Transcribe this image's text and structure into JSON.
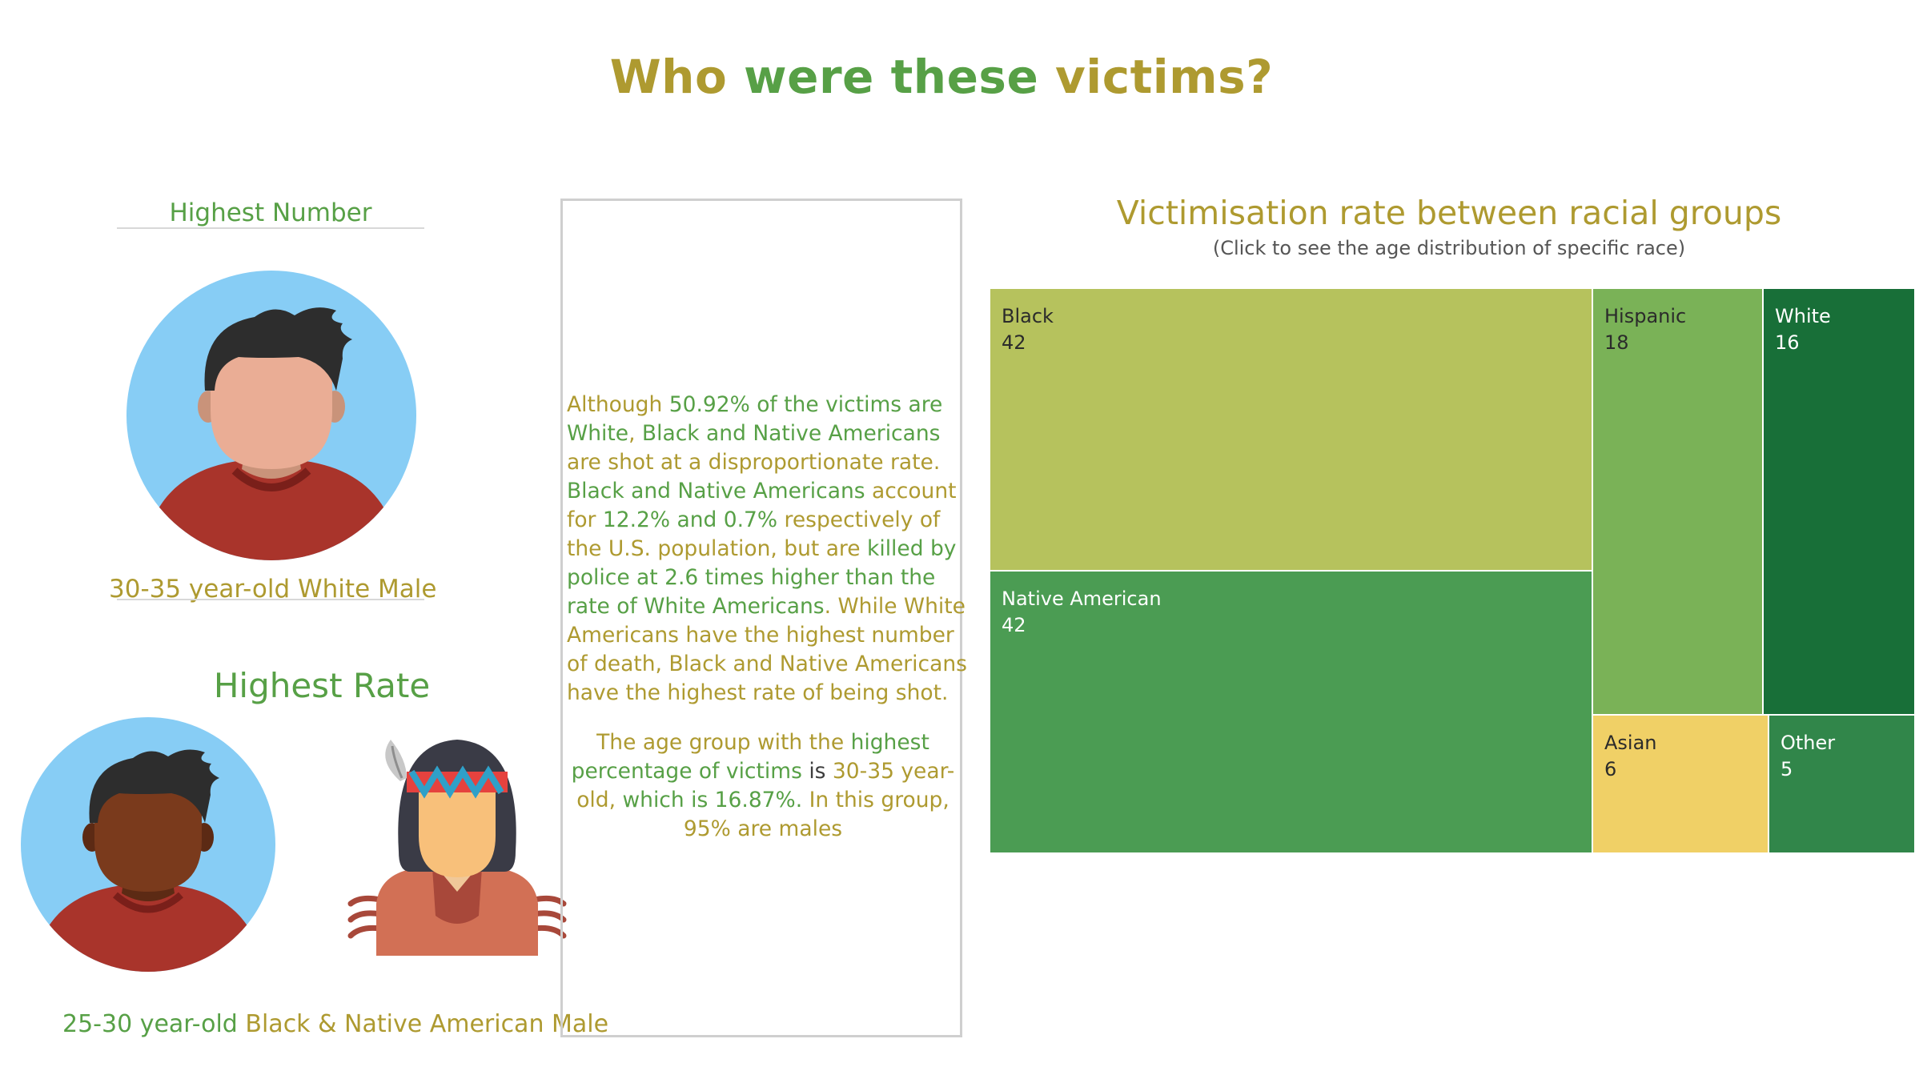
{
  "title": {
    "part1": "Who",
    "part2": "were these",
    "part3": "victims?"
  },
  "highest_number": {
    "label": "Highest Number",
    "caption_part1": "30-35 year-old",
    "caption_part2": "White Male"
  },
  "highest_rate": {
    "label": "Highest Rate",
    "caption_part1": "25-30 year-old",
    "caption_part2": "Black & Native American Male"
  },
  "icons": {
    "white_male": "white-male-avatar-icon",
    "black_male": "black-male-avatar-icon",
    "native_male": "native-american-male-icon"
  },
  "text_panel": {
    "p1": [
      "Although ",
      "50.92% of the victims are White",
      ", ",
      "Black and Native Americans",
      " are shot at a disproportionate rate. ",
      "Black and Native Americans",
      " account for ",
      "12.2% and 0.7%",
      " respectively of the U.S. population, but are ",
      "killed by police at 2.6 times higher than the rate of White Americans",
      ". ",
      "While White Americans have the highest number of death,",
      " ",
      "Black and Native Americans have the highest rate of being shot."
    ],
    "p2": [
      "The age group with the ",
      "highest percentage of victims",
      " is ",
      "30-35 year-old,",
      " which is 16.87%. ",
      "In this group, 95% are males"
    ]
  },
  "treemap": {
    "title": "Victimisation rate between racial groups",
    "subtitle": "(Click to see the age distribution of specific race)"
  },
  "colors": {
    "green": "#57a046",
    "olive": "#ae9a30",
    "black_tile": "#b6c25d",
    "native_tile": "#4b9c53",
    "hispanic_tile": "#7ab257",
    "white_tile": "#186f38",
    "asian_tile": "#f0d066",
    "other_tile": "#31864a"
  },
  "chart_data": {
    "type": "treemap",
    "title": "Victimisation rate between racial groups",
    "subtitle": "(Click to see the age distribution of specific race)",
    "items": [
      {
        "name": "Black",
        "value": 42
      },
      {
        "name": "Native American",
        "value": 42
      },
      {
        "name": "Hispanic",
        "value": 18
      },
      {
        "name": "White",
        "value": 16
      },
      {
        "name": "Asian",
        "value": 6
      },
      {
        "name": "Other",
        "value": 5
      }
    ]
  }
}
